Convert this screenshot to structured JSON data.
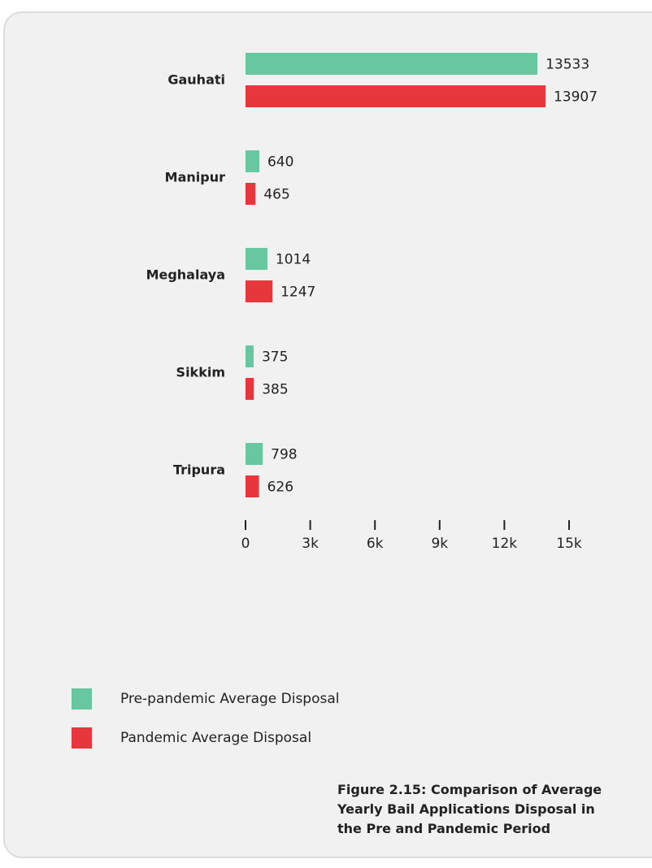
{
  "chart_data": {
    "type": "bar",
    "orientation": "horizontal",
    "categories": [
      "Gauhati",
      "Manipur",
      "Meghalaya",
      "Sikkim",
      "Tripura"
    ],
    "series": [
      {
        "name": "Pre-pandemic Average Disposal",
        "color": "#66c7a0",
        "values": [
          13533,
          640,
          1014,
          375,
          798
        ]
      },
      {
        "name": "Pandemic Average Disposal",
        "color": "#e8363d",
        "values": [
          13907,
          465,
          1247,
          385,
          626
        ]
      }
    ],
    "xlim": [
      0,
      15000
    ],
    "xticks": [
      0,
      {
        "value": 3000,
        "label": "3k"
      },
      {
        "value": 6000,
        "label": "6k"
      },
      {
        "value": 9000,
        "label": "9k"
      },
      {
        "value": 12000,
        "label": "12k"
      },
      {
        "value": 15000,
        "label": "15k"
      }
    ],
    "caption": "Figure 2.15: Comparison of Average Yearly Bail Applications Disposal in the Pre and Pandemic Period"
  }
}
